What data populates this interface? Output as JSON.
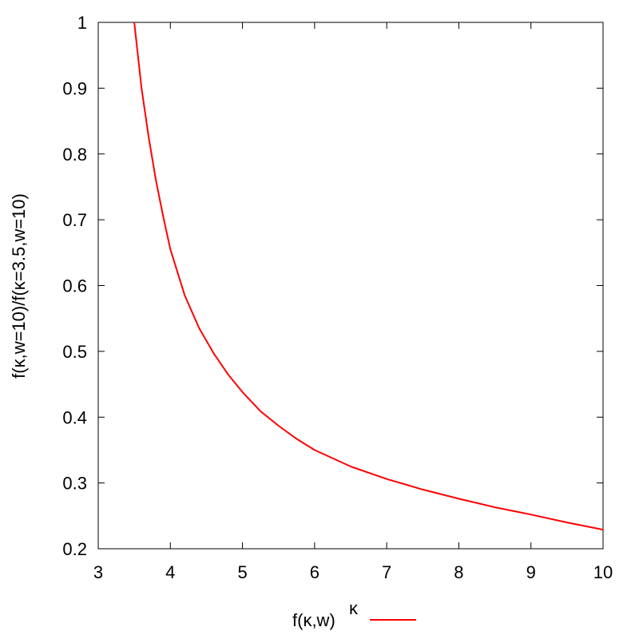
{
  "chart_data": {
    "type": "line",
    "title": "",
    "xlabel": "κ",
    "ylabel": "f(κ,w=10)/f(κ=3.5,w=10)",
    "xlim": [
      3,
      10
    ],
    "ylim": [
      0.2,
      1.0
    ],
    "x_ticks": [
      "3",
      "4",
      "5",
      "6",
      "7",
      "8",
      "9",
      "10"
    ],
    "y_ticks": [
      "0.2",
      "0.3",
      "0.4",
      "0.5",
      "0.6",
      "0.7",
      "0.8",
      "0.9",
      "1"
    ],
    "grid": false,
    "legend_position": "bottom-center",
    "series": [
      {
        "name": "f(κ,w)",
        "color": "#ff0000",
        "x": [
          3.5,
          3.6,
          3.7,
          3.8,
          3.9,
          4.0,
          4.2,
          4.4,
          4.6,
          4.8,
          5.0,
          5.25,
          5.5,
          5.75,
          6.0,
          6.5,
          7.0,
          7.5,
          8.0,
          8.5,
          9.0,
          9.5,
          10.0
        ],
        "y": [
          1.0,
          0.9,
          0.825,
          0.76,
          0.705,
          0.655,
          0.585,
          0.535,
          0.497,
          0.465,
          0.438,
          0.409,
          0.387,
          0.367,
          0.35,
          0.325,
          0.306,
          0.29,
          0.276,
          0.263,
          0.252,
          0.24,
          0.229
        ]
      }
    ]
  }
}
